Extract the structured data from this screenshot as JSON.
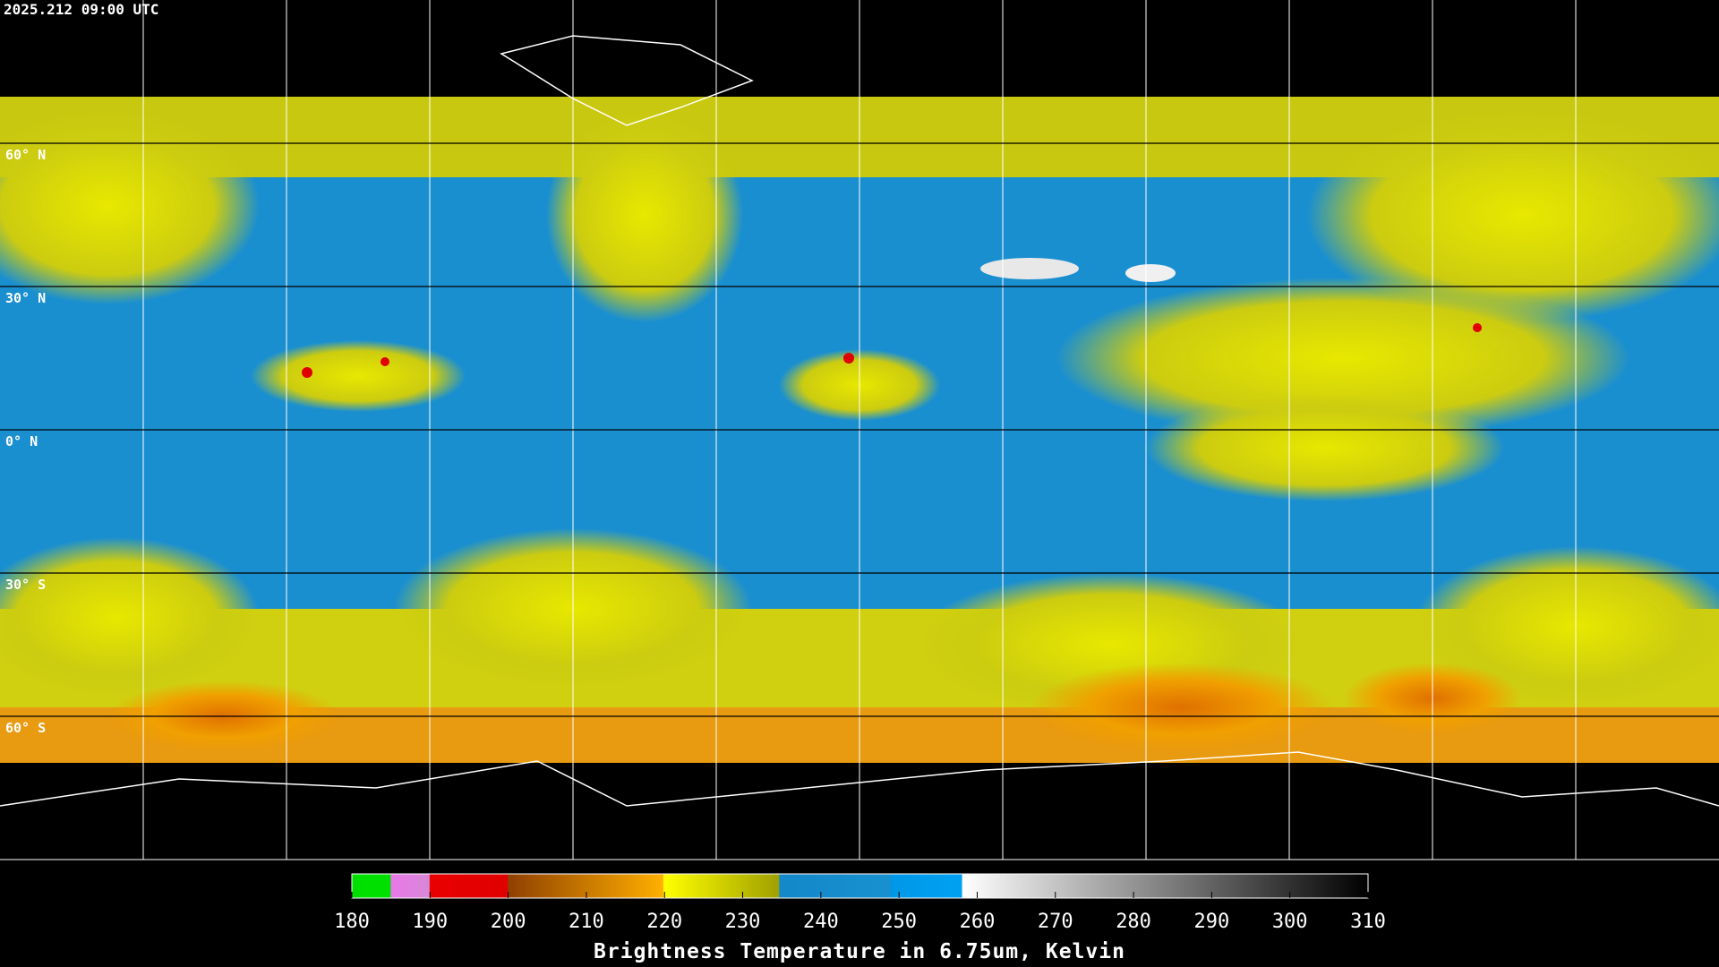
{
  "header": {
    "timestamp": "2025.212 09:00 UTC"
  },
  "map": {
    "latitude_labels": [
      "60° N",
      "30° N",
      "0° N",
      "30° S",
      "60° S"
    ]
  },
  "colorbar": {
    "ticks": [
      180,
      190,
      200,
      210,
      220,
      230,
      240,
      250,
      260,
      270,
      280,
      290,
      300,
      310
    ],
    "title": "Brightness Temperature in 6.75um, Kelvin"
  }
}
